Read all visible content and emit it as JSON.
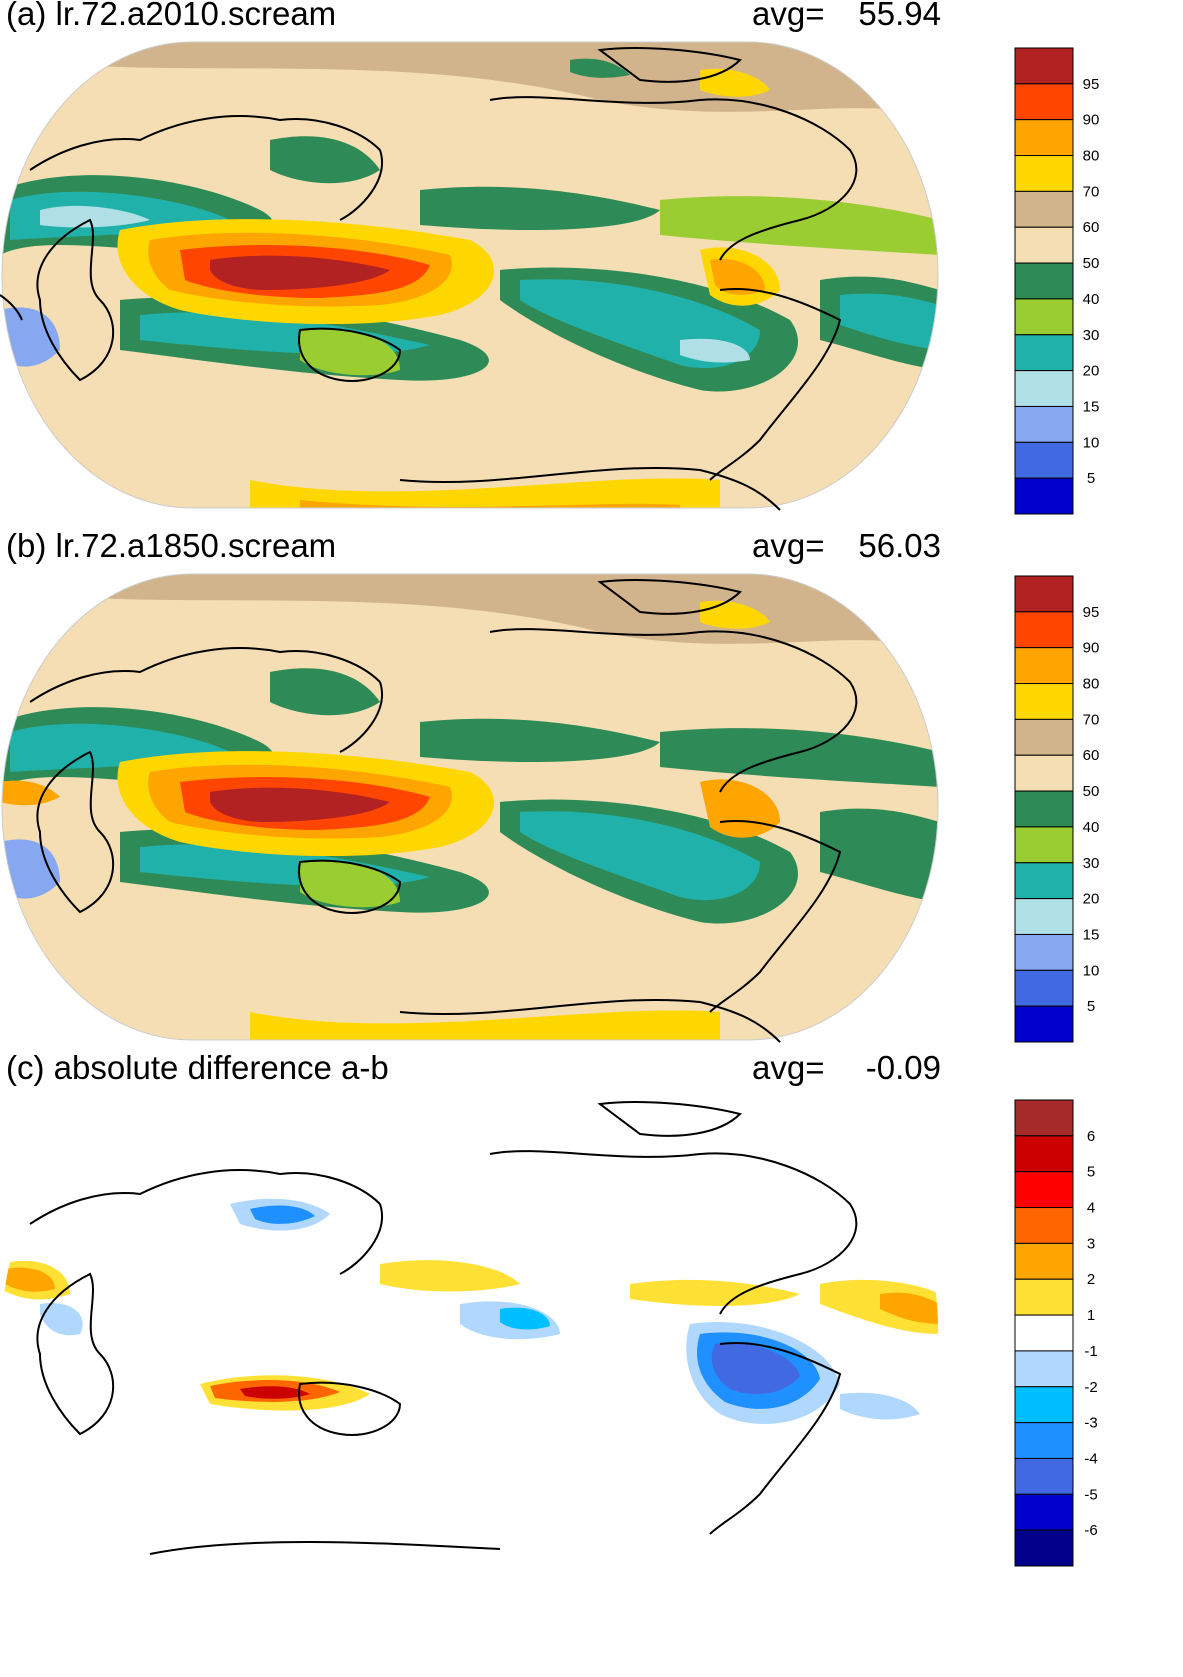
{
  "panels": [
    {
      "id": "a",
      "title": "(a) lr.72.a2010.scream",
      "avg_label": "avg=",
      "avg_value": "55.94",
      "colorbar": {
        "labels": [
          "95",
          "90",
          "80",
          "70",
          "60",
          "50",
          "40",
          "30",
          "20",
          "15",
          "10",
          "5"
        ],
        "colors": [
          "#b22222",
          "#ff4500",
          "#ffa500",
          "#ffd700",
          "#d2b48c",
          "#f5deb3",
          "#2e8b57",
          "#9acd32",
          "#20b2aa",
          "#b0e0e6",
          "#87a8f0",
          "#4169e1",
          "#0000cd"
        ]
      }
    },
    {
      "id": "b",
      "title": "(b) lr.72.a1850.scream",
      "avg_label": "avg=",
      "avg_value": "56.03",
      "colorbar": {
        "labels": [
          "95",
          "90",
          "80",
          "70",
          "60",
          "50",
          "40",
          "30",
          "20",
          "15",
          "10",
          "5"
        ],
        "colors": [
          "#b22222",
          "#ff4500",
          "#ffa500",
          "#ffd700",
          "#d2b48c",
          "#f5deb3",
          "#2e8b57",
          "#9acd32",
          "#20b2aa",
          "#b0e0e6",
          "#87a8f0",
          "#4169e1",
          "#0000cd"
        ]
      }
    },
    {
      "id": "c",
      "title": "(c) absolute difference a-b",
      "avg_label": "avg=",
      "avg_value": "-0.09",
      "colorbar": {
        "labels": [
          "6",
          "5",
          "4",
          "3",
          "2",
          "1",
          "-1",
          "-2",
          "-3",
          "-4",
          "-5",
          "-6"
        ],
        "colors": [
          "#a52a2a",
          "#cd0000",
          "#ff0000",
          "#ff6600",
          "#ffa500",
          "#ffe135",
          "#ffffff",
          "#b0d8ff",
          "#00bfff",
          "#1e90ff",
          "#4169e1",
          "#0000cd",
          "#00008b"
        ]
      }
    }
  ]
}
